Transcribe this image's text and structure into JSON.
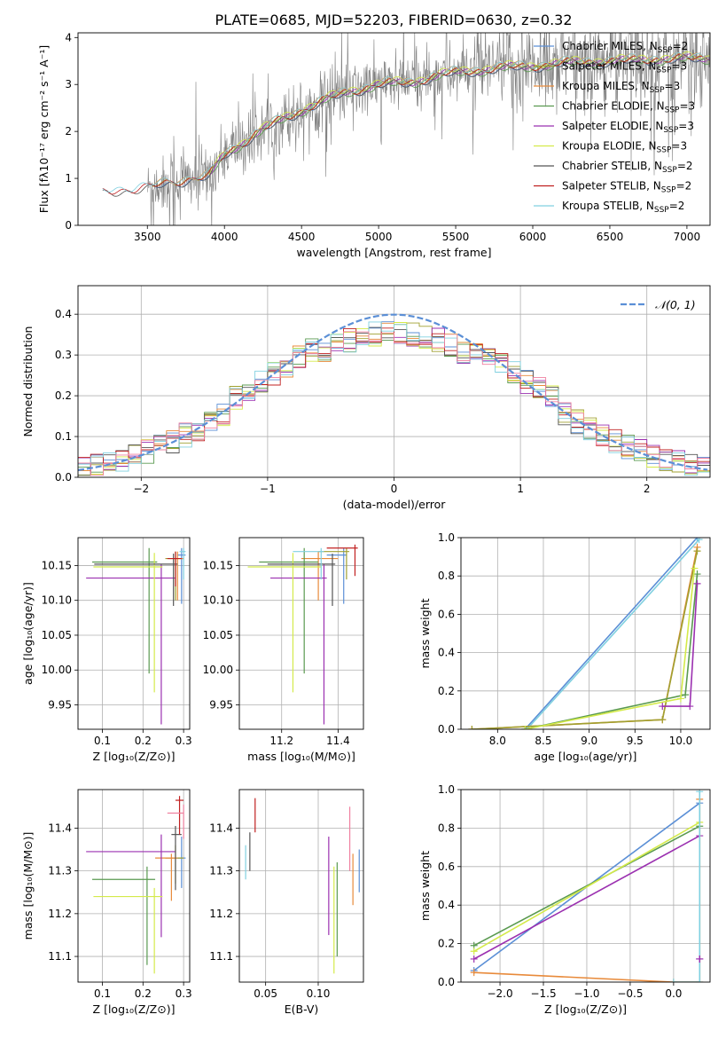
{
  "figure_title": "PLATE=0685, MJD=52203, FIBERID=0630, z=0.32",
  "colors": {
    "Chabrier MILES": "#5b8fd6",
    "Salpeter MILES": "#a0a030",
    "Kroupa MILES": "#e88a3a",
    "Chabrier ELODIE": "#5a9a50",
    "Salpeter ELODIE": "#9b30b0",
    "Kroupa ELODIE": "#d4ea4a",
    "Chabrier STELIB": "#555555",
    "Salpeter STELIB": "#c02020",
    "Kroupa STELIB": "#80d0e0",
    "gaussian": "#5b8fd6",
    "spectrum_data": "#808080",
    "pink": "#f080a0"
  },
  "legend": [
    {
      "label": "Chabrier MILES, N",
      "sub": "SSP",
      "tail": "=2",
      "key": "Chabrier MILES"
    },
    {
      "label": "Salpeter MILES, N",
      "sub": "SSP",
      "tail": "=3",
      "key": "Salpeter MILES"
    },
    {
      "label": "Kroupa MILES, N",
      "sub": "SSP",
      "tail": "=3",
      "key": "Kroupa MILES"
    },
    {
      "label": "Chabrier ELODIE, N",
      "sub": "SSP",
      "tail": "=3",
      "key": "Chabrier ELODIE"
    },
    {
      "label": "Salpeter ELODIE, N",
      "sub": "SSP",
      "tail": "=3",
      "key": "Salpeter ELODIE"
    },
    {
      "label": "Kroupa ELODIE, N",
      "sub": "SSP",
      "tail": "=3",
      "key": "Kroupa ELODIE"
    },
    {
      "label": "Chabrier STELIB, N",
      "sub": "SSP",
      "tail": "=2",
      "key": "Chabrier STELIB"
    },
    {
      "label": "Salpeter STELIB, N",
      "sub": "SSP",
      "tail": "=2",
      "key": "Salpeter STELIB"
    },
    {
      "label": "Kroupa STELIB, N",
      "sub": "SSP",
      "tail": "=2",
      "key": "Kroupa STELIB"
    }
  ],
  "chart_data": [
    {
      "id": "spectrum",
      "type": "line",
      "xlabel": "wavelength [Angstrom, rest frame]",
      "ylabel": "Flux [fλ10⁻¹⁷ erg cm⁻² s⁻¹ A⁻¹]",
      "xlim": [
        3050,
        7150
      ],
      "ylim": [
        0,
        4.1
      ],
      "xticks": [
        3500,
        4000,
        4500,
        5000,
        5500,
        6000,
        6500,
        7000
      ],
      "yticks": [
        0,
        1,
        2,
        3,
        4
      ],
      "continuum": {
        "x": [
          3210,
          3300,
          3500,
          3700,
          3900,
          4000,
          4200,
          4400,
          4600,
          4800,
          5000,
          5200,
          5400,
          5600,
          5800,
          6000,
          6200,
          6400,
          6600,
          6800,
          7000
        ],
        "y": [
          0.7,
          0.75,
          0.8,
          0.95,
          1.05,
          1.5,
          1.95,
          2.3,
          2.6,
          2.85,
          3.0,
          3.05,
          3.2,
          3.3,
          3.35,
          3.4,
          3.45,
          3.5,
          3.5,
          3.55,
          3.55
        ]
      },
      "data_start": 3500
    },
    {
      "id": "residuals",
      "type": "histogram",
      "xlabel": "(data-model)/error",
      "ylabel": "Normed distribution",
      "xlim": [
        -2.5,
        2.5
      ],
      "ylim": [
        0,
        0.47
      ],
      "xticks": [
        -2,
        -1,
        0,
        1,
        2
      ],
      "yticks": [
        0.0,
        0.1,
        0.2,
        0.3,
        0.4
      ],
      "gaussian_label": "𝒩(0, 1)"
    },
    {
      "id": "age_vs_Z",
      "type": "errorbar",
      "xlabel": "Z [log₁₀(Z/Z⊙)]",
      "ylabel": "age  [log₁₀(age/yr)]",
      "xlim": [
        0.04,
        0.315
      ],
      "ylim": [
        9.915,
        10.19
      ],
      "xticks": [
        0.1,
        0.2,
        0.3
      ],
      "yticks": [
        9.95,
        10.0,
        10.05,
        10.1,
        10.15
      ],
      "points": [
        {
          "key": "Chabrier MILES",
          "x": 0.295,
          "y": 10.165,
          "xerr": [
            0.01,
            0.01
          ],
          "yerr": [
            0.07,
            0.01
          ]
        },
        {
          "key": "Salpeter MILES",
          "x": 0.28,
          "y": 10.16,
          "xerr": [
            0.025,
            0.02
          ],
          "yerr": [
            0.06,
            0.01
          ]
        },
        {
          "key": "Kroupa MILES",
          "x": 0.285,
          "y": 10.16,
          "xerr": [
            0.02,
            0.015
          ],
          "yerr": [
            0.06,
            0.01
          ]
        },
        {
          "key": "Chabrier ELODIE",
          "x": 0.215,
          "y": 10.155,
          "xerr": [
            0.14,
            0.02
          ],
          "yerr": [
            0.16,
            0.02
          ]
        },
        {
          "key": "Salpeter ELODIE",
          "x": 0.245,
          "y": 10.132,
          "xerr": [
            0.185,
            0.035
          ],
          "yerr": [
            0.21,
            0.02
          ]
        },
        {
          "key": "Kroupa ELODIE",
          "x": 0.228,
          "y": 10.148,
          "xerr": [
            0.15,
            0.02
          ],
          "yerr": [
            0.18,
            0.02
          ]
        },
        {
          "key": "Chabrier STELIB",
          "x": 0.275,
          "y": 10.152,
          "xerr": [
            0.195,
            0.01
          ],
          "yerr": [
            0.06,
            0.015
          ]
        },
        {
          "key": "Salpeter STELIB",
          "x": 0.28,
          "y": 10.16,
          "xerr": [
            0.02,
            0.015
          ],
          "yerr": [
            0.04,
            0.01
          ]
        },
        {
          "key": "Kroupa STELIB",
          "x": 0.3,
          "y": 10.17,
          "xerr": [
            0.01,
            0.005
          ],
          "yerr": [
            0.04,
            0.005
          ]
        }
      ]
    },
    {
      "id": "age_vs_mass",
      "type": "errorbar",
      "xlabel": "mass [log₁₀(M/M⊙)]",
      "ylabel": "",
      "xlim": [
        11.05,
        11.49
      ],
      "ylim": [
        9.915,
        10.19
      ],
      "xticks": [
        11.2,
        11.4
      ],
      "yticks": [
        9.95,
        10.0,
        10.05,
        10.1,
        10.15
      ],
      "points": [
        {
          "key": "Chabrier MILES",
          "x": 11.42,
          "y": 10.165,
          "xerr": [
            0.06,
            0.01
          ],
          "yerr": [
            0.07,
            0.01
          ]
        },
        {
          "key": "Salpeter MILES",
          "x": 11.43,
          "y": 10.17,
          "xerr": [
            0.1,
            0.01
          ],
          "yerr": [
            0.04,
            0.005
          ]
        },
        {
          "key": "Kroupa MILES",
          "x": 11.33,
          "y": 10.16,
          "xerr": [
            0.06,
            0.07
          ],
          "yerr": [
            0.06,
            0.01
          ]
        },
        {
          "key": "Chabrier ELODIE",
          "x": 11.28,
          "y": 10.155,
          "xerr": [
            0.16,
            0.05
          ],
          "yerr": [
            0.16,
            0.02
          ]
        },
        {
          "key": "Salpeter ELODIE",
          "x": 11.35,
          "y": 10.132,
          "xerr": [
            0.19,
            0.01
          ],
          "yerr": [
            0.21,
            0.02
          ]
        },
        {
          "key": "Kroupa ELODIE",
          "x": 11.24,
          "y": 10.148,
          "xerr": [
            0.16,
            0.1
          ],
          "yerr": [
            0.18,
            0.02
          ]
        },
        {
          "key": "Chabrier STELIB",
          "x": 11.38,
          "y": 10.152,
          "xerr": [
            0.23,
            0.01
          ],
          "yerr": [
            0.06,
            0.015
          ]
        },
        {
          "key": "Salpeter STELIB",
          "x": 11.46,
          "y": 10.175,
          "xerr": [
            0.1,
            0.01
          ],
          "yerr": [
            0.04,
            0.005
          ]
        },
        {
          "key": "Kroupa STELIB",
          "x": 11.34,
          "y": 10.17,
          "xerr": [
            0.1,
            0.01
          ],
          "yerr": [
            0.04,
            0.005
          ]
        }
      ]
    },
    {
      "id": "mass_weight_vs_age",
      "type": "line",
      "xlabel": "age  [log₁₀(age/yr)]",
      "ylabel": "mass weight",
      "xlim": [
        7.6,
        10.32
      ],
      "ylim": [
        0,
        1.0
      ],
      "xticks": [
        8.0,
        8.5,
        9.0,
        9.5,
        10.0
      ],
      "yticks": [
        0.0,
        0.2,
        0.4,
        0.6,
        0.8,
        1.0
      ],
      "series": [
        {
          "key": "Chabrier MILES",
          "x": [
            8.3,
            10.18
          ],
          "y": [
            0.0,
            1.0
          ]
        },
        {
          "key": "Kroupa STELIB",
          "x": [
            8.32,
            10.2
          ],
          "y": [
            0.0,
            0.99
          ]
        },
        {
          "key": "Kroupa MILES",
          "x": [
            7.72,
            9.8,
            10.18
          ],
          "y": [
            0.0,
            0.05,
            0.95
          ]
        },
        {
          "key": "Salpeter MILES",
          "x": [
            7.72,
            9.8,
            10.18
          ],
          "y": [
            0.0,
            0.05,
            0.93
          ]
        },
        {
          "key": "Chabrier ELODIE",
          "x": [
            8.3,
            10.05,
            10.18
          ],
          "y": [
            0.0,
            0.18,
            0.81
          ]
        },
        {
          "key": "Kroupa ELODIE",
          "x": [
            8.3,
            10.0,
            10.15
          ],
          "y": [
            0.0,
            0.16,
            0.84
          ]
        },
        {
          "key": "Salpeter ELODIE",
          "x": [
            9.8,
            10.1,
            10.18
          ],
          "y": [
            0.12,
            0.12,
            0.76
          ]
        }
      ]
    },
    {
      "id": "mass_vs_Z",
      "type": "errorbar",
      "xlabel": "Z [log₁₀(Z/Z⊙)]",
      "ylabel": "mass [log₁₀(M/M⊙)]",
      "xlim": [
        0.04,
        0.315
      ],
      "ylim": [
        11.04,
        11.49
      ],
      "xticks": [
        0.1,
        0.2,
        0.3
      ],
      "yticks": [
        11.1,
        11.2,
        11.3,
        11.4
      ],
      "points": [
        {
          "key": "Chabrier MILES",
          "x": 0.295,
          "y": 11.33,
          "xerr": [
            0.01,
            0.01
          ],
          "yerr": [
            0.07,
            0.05
          ]
        },
        {
          "key": "Salpeter MILES",
          "x": 0.28,
          "y": 11.33,
          "xerr": [
            0.025,
            0.02
          ],
          "yerr": [
            0.06,
            0.03
          ]
        },
        {
          "key": "Kroupa MILES",
          "x": 0.27,
          "y": 11.33,
          "xerr": [
            0.04,
            0.015
          ],
          "yerr": [
            0.1,
            0.01
          ]
        },
        {
          "key": "Chabrier ELODIE",
          "x": 0.21,
          "y": 11.28,
          "xerr": [
            0.135,
            0.02
          ],
          "yerr": [
            0.2,
            0.03
          ]
        },
        {
          "key": "Salpeter ELODIE",
          "x": 0.245,
          "y": 11.345,
          "xerr": [
            0.185,
            0.035
          ],
          "yerr": [
            0.2,
            0.04
          ]
        },
        {
          "key": "Kroupa ELODIE",
          "x": 0.228,
          "y": 11.24,
          "xerr": [
            0.15,
            0.02
          ],
          "yerr": [
            0.18,
            0.02
          ]
        },
        {
          "key": "Chabrier STELIB",
          "x": 0.28,
          "y": 11.385,
          "xerr": [
            0.01,
            0.015
          ],
          "yerr": [
            0.13,
            0.02
          ]
        },
        {
          "key": "Salpeter STELIB",
          "x": 0.29,
          "y": 11.465,
          "xerr": [
            0.01,
            0.01
          ],
          "yerr": [
            0.08,
            0.01
          ]
        },
        {
          "key": "pink",
          "x": 0.3,
          "y": 11.435,
          "xerr": [
            0.04,
            0.0
          ],
          "yerr": [
            0.06,
            0.02
          ]
        }
      ]
    },
    {
      "id": "mass_vs_EBV",
      "type": "errorbar",
      "xlabel": "E(B-V)",
      "ylabel": "",
      "xlim": [
        0.025,
        0.143
      ],
      "ylim": [
        11.04,
        11.49
      ],
      "xticks": [
        0.05,
        0.1
      ],
      "yticks": [
        11.1,
        11.2,
        11.3,
        11.4
      ],
      "points": [
        {
          "key": "Salpeter STELIB",
          "x": 0.04,
          "y": 11.43,
          "yerr": [
            0.04,
            0.04
          ]
        },
        {
          "key": "Chabrier STELIB",
          "x": 0.035,
          "y": 11.35,
          "yerr": [
            0.05,
            0.04
          ]
        },
        {
          "key": "Kroupa STELIB",
          "x": 0.031,
          "y": 11.32,
          "yerr": [
            0.04,
            0.04
          ]
        },
        {
          "key": "Salpeter ELODIE",
          "x": 0.11,
          "y": 11.27,
          "yerr": [
            0.12,
            0.11
          ]
        },
        {
          "key": "Kroupa ELODIE",
          "x": 0.115,
          "y": 11.2,
          "yerr": [
            0.14,
            0.11
          ]
        },
        {
          "key": "Chabrier ELODIE",
          "x": 0.118,
          "y": 11.22,
          "yerr": [
            0.12,
            0.1
          ]
        },
        {
          "key": "pink",
          "x": 0.13,
          "y": 11.37,
          "yerr": [
            0.07,
            0.08
          ]
        },
        {
          "key": "Kroupa MILES",
          "x": 0.133,
          "y": 11.28,
          "yerr": [
            0.06,
            0.06
          ]
        },
        {
          "key": "Chabrier MILES",
          "x": 0.139,
          "y": 11.3,
          "yerr": [
            0.05,
            0.05
          ]
        }
      ]
    },
    {
      "id": "mass_weight_vs_Z",
      "type": "line",
      "xlabel": "Z [log₁₀(Z/Z⊙)]",
      "ylabel": "mass weight",
      "xlim": [
        -2.45,
        0.42
      ],
      "ylim": [
        0,
        1.0
      ],
      "xticks": [
        -2.0,
        -1.5,
        -1.0,
        -0.5,
        0.0
      ],
      "yticks": [
        0.0,
        0.2,
        0.4,
        0.6,
        0.8,
        1.0
      ],
      "series": [
        {
          "key": "Chabrier MILES",
          "x": [
            -2.3,
            0.3
          ],
          "y": [
            0.06,
            0.93
          ]
        },
        {
          "key": "Chabrier ELODIE",
          "x": [
            -2.3,
            0.3
          ],
          "y": [
            0.19,
            0.81
          ]
        },
        {
          "key": "Kroupa ELODIE",
          "x": [
            -2.3,
            0.3
          ],
          "y": [
            0.16,
            0.83
          ]
        },
        {
          "key": "Salpeter ELODIE",
          "x": [
            -2.3,
            0.3
          ],
          "y": [
            0.12,
            0.76
          ]
        },
        {
          "key": "Kroupa MILES",
          "x": [
            -2.3,
            0.0,
            0.3,
            0.3
          ],
          "y": [
            0.05,
            0.0,
            0.0,
            0.95
          ]
        },
        {
          "key": "Kroupa STELIB",
          "x": [
            0.0,
            0.3,
            0.3
          ],
          "y": [
            0.0,
            0.0,
            0.99
          ]
        },
        {
          "key": "Salpeter ELODIE",
          "x": [
            0.3,
            0.3
          ],
          "y": [
            0.12,
            0.12
          ]
        }
      ]
    }
  ]
}
